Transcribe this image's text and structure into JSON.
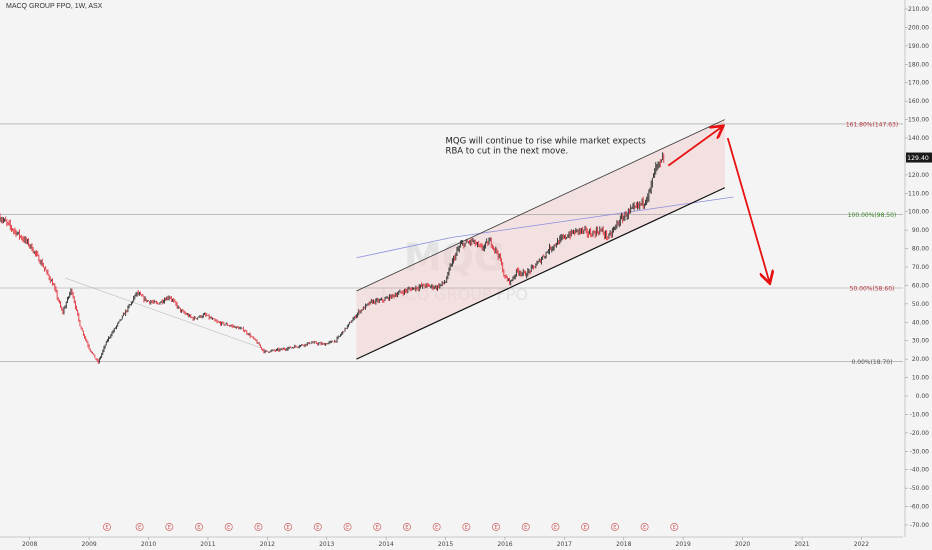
{
  "header": {
    "symbol": "MACQ GROUP FPO, 1W, ASX"
  },
  "watermark": {
    "ticker": "MQG",
    "name": "MACQ GROUP FPO"
  },
  "annotation": {
    "text": [
      "MQG will continue to rise while market expects",
      "RBA to cut in the next move."
    ]
  },
  "price_label": "129.40",
  "colors": {
    "background": "#f4f4f4",
    "up": "#2b2b2b",
    "down": "#e0303a",
    "channel_fill": "#f2cfcf",
    "arrow": "#e81010",
    "fib_red": "#b5343a",
    "fib_green": "#3a8a2a",
    "fib_gray": "#555555",
    "trend_blue": "#8a8de0"
  },
  "chart_data": {
    "type": "candlestick",
    "title": "MACQ GROUP FPO, 1W, ASX",
    "x_axis": {
      "tick_labels": [
        "2008",
        "2009",
        "2010",
        "2011",
        "2012",
        "2013",
        "2014",
        "2015",
        "2016",
        "2017",
        "2018",
        "2019",
        "2020",
        "2021",
        "2022"
      ],
      "range": [
        2007.5,
        2022.7
      ]
    },
    "y_axis": {
      "range": [
        -75,
        215
      ],
      "tick_labels": [
        "210.00",
        "200.00",
        "190.00",
        "180.00",
        "170.00",
        "160.00",
        "150.00",
        "140.00",
        "130.00",
        "120.00",
        "110.00",
        "100.00",
        "90.00",
        "80.00",
        "70.00",
        "60.00",
        "50.00",
        "40.00",
        "30.00",
        "20.00",
        "10.00",
        "0.00",
        "-10.00",
        "-20.00",
        "-30.00",
        "-40.00",
        "-50.00",
        "-60.00",
        "-70.00"
      ],
      "position": "right"
    },
    "price_path": [
      [
        2007.5,
        97
      ],
      [
        2007.8,
        88
      ],
      [
        2008.0,
        82
      ],
      [
        2008.2,
        72
      ],
      [
        2008.4,
        60
      ],
      [
        2008.55,
        45
      ],
      [
        2008.7,
        58
      ],
      [
        2008.85,
        38
      ],
      [
        2009.0,
        26
      ],
      [
        2009.15,
        18
      ],
      [
        2009.3,
        30
      ],
      [
        2009.5,
        40
      ],
      [
        2009.7,
        50
      ],
      [
        2009.8,
        56
      ],
      [
        2009.95,
        52
      ],
      [
        2010.15,
        50
      ],
      [
        2010.35,
        54
      ],
      [
        2010.55,
        46
      ],
      [
        2010.75,
        42
      ],
      [
        2010.95,
        44
      ],
      [
        2011.15,
        40
      ],
      [
        2011.4,
        38
      ],
      [
        2011.6,
        36
      ],
      [
        2011.8,
        30
      ],
      [
        2011.95,
        24
      ],
      [
        2012.2,
        25
      ],
      [
        2012.5,
        27
      ],
      [
        2012.75,
        29
      ],
      [
        2012.95,
        28
      ],
      [
        2013.15,
        30
      ],
      [
        2013.35,
        38
      ],
      [
        2013.55,
        46
      ],
      [
        2013.75,
        51
      ],
      [
        2013.95,
        52
      ],
      [
        2014.15,
        55
      ],
      [
        2014.4,
        58
      ],
      [
        2014.65,
        60
      ],
      [
        2014.85,
        59
      ],
      [
        2015.0,
        62
      ],
      [
        2015.1,
        72
      ],
      [
        2015.25,
        82
      ],
      [
        2015.45,
        84
      ],
      [
        2015.6,
        80
      ],
      [
        2015.75,
        84
      ],
      [
        2015.9,
        76
      ],
      [
        2016.0,
        64
      ],
      [
        2016.1,
        62
      ],
      [
        2016.2,
        68
      ],
      [
        2016.35,
        66
      ],
      [
        2016.55,
        72
      ],
      [
        2016.75,
        80
      ],
      [
        2016.95,
        85
      ],
      [
        2017.1,
        88
      ],
      [
        2017.25,
        90
      ],
      [
        2017.45,
        88
      ],
      [
        2017.6,
        90
      ],
      [
        2017.75,
        86
      ],
      [
        2017.9,
        94
      ],
      [
        2018.05,
        99
      ],
      [
        2018.2,
        102
      ],
      [
        2018.35,
        106
      ],
      [
        2018.45,
        112
      ],
      [
        2018.5,
        120
      ],
      [
        2018.55,
        124
      ],
      [
        2018.62,
        126
      ],
      [
        2018.68,
        129.4
      ]
    ],
    "channel": {
      "upper": [
        [
          2013.5,
          57
        ],
        [
          2019.7,
          150
        ]
      ],
      "lower": [
        [
          2013.5,
          20
        ],
        [
          2019.7,
          113
        ]
      ]
    },
    "blue_trendline": [
      [
        2013.5,
        75
      ],
      [
        2015.1,
        86
      ],
      [
        2019.85,
        108
      ]
    ],
    "fib_levels": [
      {
        "label": "161.80%(147.63)",
        "value": 147.63,
        "color_key": "fib_red"
      },
      {
        "label": "100.00%(98.50)",
        "value": 98.5,
        "color_key": "fib_green"
      },
      {
        "label": "50.00%(58.60)",
        "value": 58.6,
        "color_key": "fib_red"
      },
      {
        "label": "0.00%(18.70)",
        "value": 18.7,
        "color_key": "fib_gray"
      }
    ],
    "earnings_markers": [
      2009.3,
      2009.85,
      2010.35,
      2010.85,
      2011.35,
      2011.85,
      2012.35,
      2012.85,
      2013.35,
      2013.85,
      2014.35,
      2014.85,
      2015.35,
      2015.85,
      2016.35,
      2016.85,
      2017.35,
      2017.85,
      2018.35,
      2018.85
    ],
    "earnings_symbol": "E",
    "arrows": [
      {
        "from": [
          2018.75,
          125
        ],
        "to": [
          2019.65,
          146
        ]
      },
      {
        "from": [
          2019.75,
          140
        ],
        "to": [
          2020.45,
          62
        ]
      }
    ]
  }
}
